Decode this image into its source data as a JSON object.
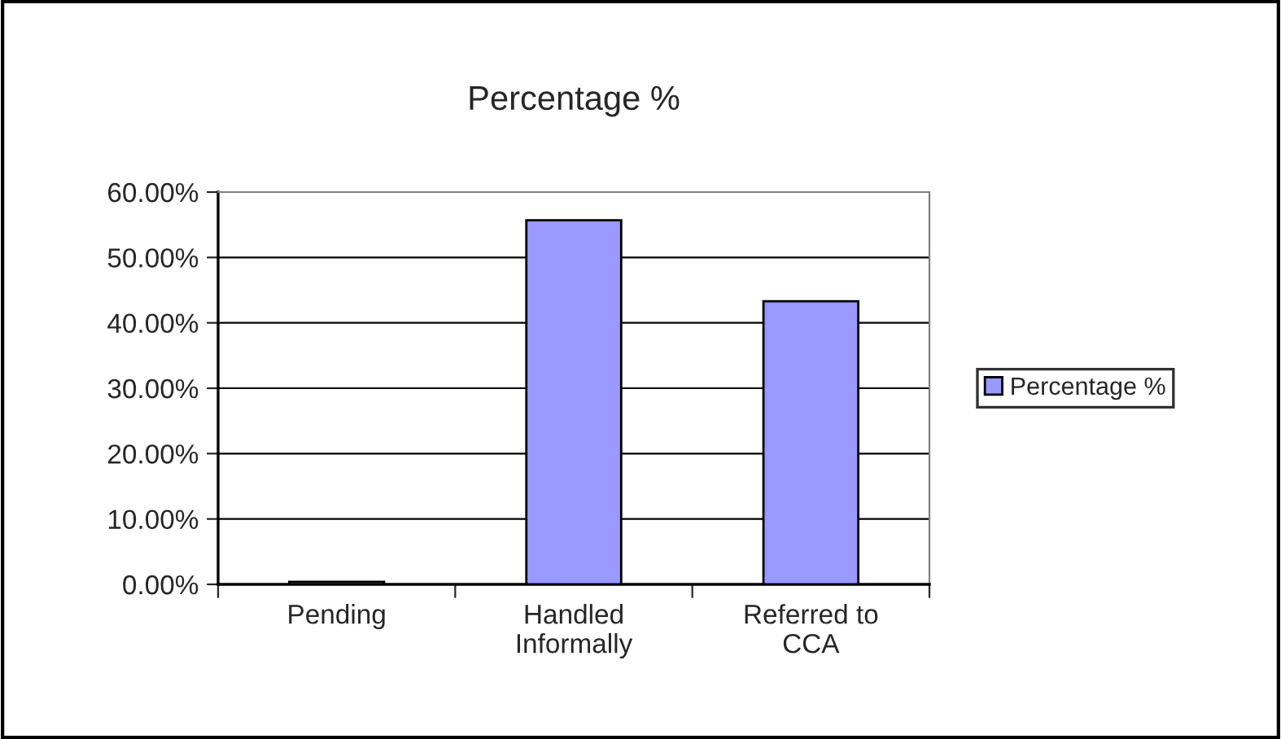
{
  "chart_data": {
    "type": "bar",
    "title": "Percentage %",
    "categories": [
      "Pending",
      "Handled\nInformally",
      "Referred to\nCCA"
    ],
    "series": [
      {
        "name": "Percentage %",
        "color": "#9999ff",
        "values": [
          0.4,
          55.7,
          43.3
        ]
      }
    ],
    "ylim": [
      0,
      60
    ],
    "yticks": [
      {
        "value": 0,
        "label": "0.00%"
      },
      {
        "value": 10,
        "label": "10.00%"
      },
      {
        "value": 20,
        "label": "20.00%"
      },
      {
        "value": 30,
        "label": "30.00%"
      },
      {
        "value": 40,
        "label": "40.00%"
      },
      {
        "value": 50,
        "label": "50.00%"
      },
      {
        "value": 60,
        "label": "60.00%"
      }
    ],
    "grid": "y",
    "legend": "right"
  }
}
